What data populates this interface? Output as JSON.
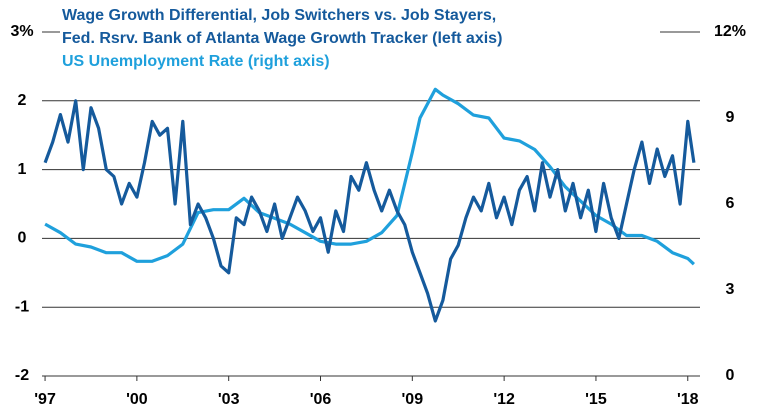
{
  "chart_data": {
    "type": "line",
    "series": [
      {
        "name": [
          "Wage Growth Differential, Job Switchers vs. Job Stayers,",
          "Fed. Rsrv. Bank of Atlanta Wage Growth Tracker (left axis)"
        ],
        "color": "#155a9c",
        "axis": "y",
        "x": [
          1997.0,
          1997.25,
          1997.5,
          1997.75,
          1998.0,
          1998.25,
          1998.5,
          1998.75,
          1999.0,
          1999.25,
          1999.5,
          1999.75,
          2000.0,
          2000.25,
          2000.5,
          2000.75,
          2001.0,
          2001.25,
          2001.5,
          2001.75,
          2002.0,
          2002.25,
          2002.5,
          2002.75,
          2003.0,
          2003.25,
          2003.5,
          2003.75,
          2004.0,
          2004.25,
          2004.5,
          2004.75,
          2005.0,
          2005.25,
          2005.5,
          2005.75,
          2006.0,
          2006.25,
          2006.5,
          2006.75,
          2007.0,
          2007.25,
          2007.5,
          2007.75,
          2008.0,
          2008.25,
          2008.5,
          2008.75,
          2009.0,
          2009.25,
          2009.5,
          2009.75,
          2010.0,
          2010.25,
          2010.5,
          2010.75,
          2011.0,
          2011.25,
          2011.5,
          2011.75,
          2012.0,
          2012.25,
          2012.5,
          2012.75,
          2013.0,
          2013.25,
          2013.5,
          2013.75,
          2014.0,
          2014.25,
          2014.5,
          2014.75,
          2015.0,
          2015.25,
          2015.5,
          2015.75,
          2016.0,
          2016.25,
          2016.5,
          2016.75,
          2017.0,
          2017.25,
          2017.5,
          2017.75,
          2018.0,
          2018.2
        ],
        "values": [
          1.1,
          1.4,
          1.8,
          1.4,
          2.0,
          1.0,
          1.9,
          1.6,
          1.0,
          0.9,
          0.5,
          0.8,
          0.6,
          1.1,
          1.7,
          1.5,
          1.6,
          0.5,
          1.7,
          0.2,
          0.5,
          0.3,
          0.0,
          -0.4,
          -0.5,
          0.3,
          0.2,
          0.6,
          0.4,
          0.1,
          0.5,
          0.0,
          0.3,
          0.6,
          0.4,
          0.1,
          0.3,
          -0.2,
          0.4,
          0.1,
          0.9,
          0.7,
          1.1,
          0.7,
          0.4,
          0.7,
          0.4,
          0.2,
          -0.2,
          -0.5,
          -0.8,
          -1.2,
          -0.9,
          -0.3,
          -0.1,
          0.3,
          0.6,
          0.4,
          0.8,
          0.3,
          0.6,
          0.2,
          0.7,
          0.9,
          0.4,
          1.1,
          0.6,
          1.0,
          0.4,
          0.8,
          0.3,
          0.7,
          0.1,
          0.8,
          0.3,
          0.0,
          0.5,
          1.0,
          1.4,
          0.8,
          1.3,
          0.9,
          1.2,
          0.5,
          1.7,
          1.1
        ]
      },
      {
        "name": [
          "US Unemployment Rate (right axis)"
        ],
        "color": "#1fa0dc",
        "axis": "y2",
        "x": [
          1997.0,
          1997.5,
          1998.0,
          1998.5,
          1999.0,
          1999.5,
          2000.0,
          2000.5,
          2001.0,
          2001.5,
          2002.0,
          2002.5,
          2003.0,
          2003.5,
          2004.0,
          2004.5,
          2005.0,
          2005.5,
          2006.0,
          2006.5,
          2007.0,
          2007.5,
          2008.0,
          2008.5,
          2009.0,
          2009.25,
          2009.5,
          2009.75,
          2010.0,
          2010.5,
          2011.0,
          2011.5,
          2012.0,
          2012.5,
          2013.0,
          2013.5,
          2014.0,
          2014.5,
          2015.0,
          2015.5,
          2016.0,
          2016.5,
          2017.0,
          2017.5,
          2018.0,
          2018.2
        ],
        "values": [
          5.3,
          5.0,
          4.6,
          4.5,
          4.3,
          4.3,
          4.0,
          4.0,
          4.2,
          4.6,
          5.7,
          5.8,
          5.8,
          6.2,
          5.7,
          5.5,
          5.3,
          5.0,
          4.7,
          4.6,
          4.6,
          4.7,
          5.0,
          5.6,
          7.8,
          9.0,
          9.5,
          10.0,
          9.8,
          9.5,
          9.1,
          9.0,
          8.3,
          8.2,
          7.9,
          7.3,
          6.6,
          6.1,
          5.6,
          5.3,
          4.9,
          4.9,
          4.7,
          4.3,
          4.1,
          3.9
        ]
      }
    ],
    "xlim": [
      1996.9,
      2018.4
    ],
    "xticks": [
      {
        "value": 1997,
        "label": "'97"
      },
      {
        "value": 2000,
        "label": "'00"
      },
      {
        "value": 2003,
        "label": "'03"
      },
      {
        "value": 2006,
        "label": "'06"
      },
      {
        "value": 2009,
        "label": "'09"
      },
      {
        "value": 2012,
        "label": "'12"
      },
      {
        "value": 2015,
        "label": "'15"
      },
      {
        "value": 2018,
        "label": "'18"
      }
    ],
    "ylim": [
      -2,
      3
    ],
    "yticks": [
      {
        "value": 3,
        "label": "3%"
      },
      2,
      1,
      0,
      -1,
      -2
    ],
    "y2lim": [
      0,
      12
    ],
    "y2ticks": [
      0,
      3,
      6,
      9,
      {
        "value": 12,
        "label": "12%"
      }
    ],
    "grid": true
  }
}
